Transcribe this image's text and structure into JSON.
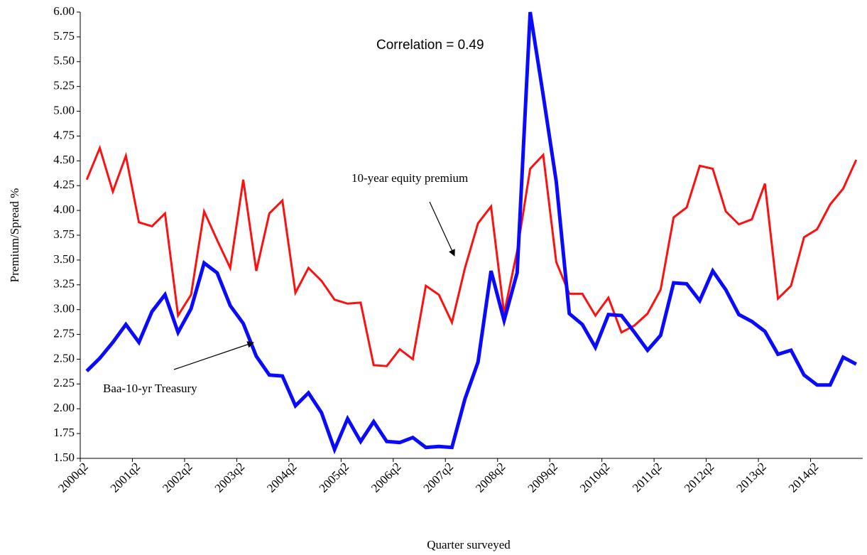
{
  "chart_data": {
    "type": "line",
    "x_label": "Quarter surveyed",
    "y_label": "Premium/Spread  %",
    "annotations": [
      "Correlation = 0.49",
      "10-year equity premium",
      "Baa-10-yr Treasury"
    ],
    "categories": [
      "2000q2",
      null,
      null,
      null,
      "2001q2",
      null,
      null,
      null,
      "2002q2",
      null,
      null,
      null,
      "2003q2",
      null,
      null,
      null,
      "2004q2",
      null,
      null,
      null,
      "2005q2",
      null,
      null,
      null,
      "2006q2",
      null,
      null,
      null,
      "2007q2",
      null,
      null,
      null,
      "2008q2",
      null,
      null,
      null,
      "2009q2",
      null,
      null,
      null,
      "2010q2",
      null,
      null,
      null,
      "2011q2",
      null,
      null,
      null,
      "2012q2",
      null,
      null,
      null,
      "2013q2",
      null,
      null,
      null,
      "2014q2",
      null,
      null,
      null
    ],
    "series": [
      {
        "color": "#ff1010",
        "values": [
          4.31,
          4.63,
          4.19,
          4.55,
          3.88,
          3.84,
          3.97,
          2.94,
          3.15,
          3.99,
          3.7,
          3.42,
          4.31,
          3.39,
          3.97,
          4.1,
          3.17,
          3.42,
          3.29,
          3.1,
          3.06,
          3.07,
          2.44,
          2.43,
          2.6,
          2.5,
          3.24,
          3.15,
          2.87,
          3.42,
          3.87,
          4.04,
          2.96,
          3.59,
          4.42,
          4.56,
          3.48,
          3.16,
          3.16,
          2.94,
          3.12,
          2.77,
          2.84,
          2.96,
          3.2,
          3.93,
          4.03,
          4.45,
          4.42,
          3.99,
          3.86,
          3.91,
          4.27,
          3.11,
          3.24,
          3.73,
          3.81,
          4.06,
          4.22,
          4.51
        ]
      },
      {
        "color": "#0a0aff",
        "values": [
          2.38,
          2.51,
          2.67,
          2.85,
          2.67,
          2.98,
          3.15,
          2.77,
          3.01,
          3.47,
          3.37,
          3.04,
          2.86,
          2.53,
          2.34,
          2.33,
          2.03,
          2.16,
          1.96,
          1.59,
          1.9,
          1.67,
          1.87,
          1.67,
          1.66,
          1.71,
          1.61,
          1.62,
          1.61,
          2.1,
          2.47,
          3.39,
          2.89,
          3.37,
          6.0,
          5.16,
          4.29,
          2.96,
          2.85,
          2.62,
          2.95,
          2.94,
          2.77,
          2.59,
          2.74,
          3.27,
          3.26,
          3.09,
          3.39,
          3.2,
          2.95,
          2.88,
          2.78,
          2.55,
          2.59,
          2.34,
          2.24,
          2.24,
          2.52,
          2.45
        ]
      }
    ],
    "ylim": [
      1.5,
      6.0
    ],
    "yticks": [
      {
        "value": 1.5,
        "label": "1.50"
      },
      1.75,
      {
        "value": 2.0,
        "label": "2.00"
      },
      2.25,
      {
        "value": 2.5,
        "label": "2.50"
      },
      2.75,
      {
        "value": 3.0,
        "label": "3.00"
      },
      3.25,
      {
        "value": 3.5,
        "label": "3.50"
      },
      3.75,
      {
        "value": 4.0,
        "label": "4.00"
      },
      4.25,
      {
        "value": 4.5,
        "label": "4.50"
      },
      4.75,
      {
        "value": 5.0,
        "label": "5.00"
      },
      5.25,
      {
        "value": 5.5,
        "label": "5.50"
      },
      5.75,
      {
        "value": 6.0,
        "label": "6.00"
      }
    ]
  }
}
